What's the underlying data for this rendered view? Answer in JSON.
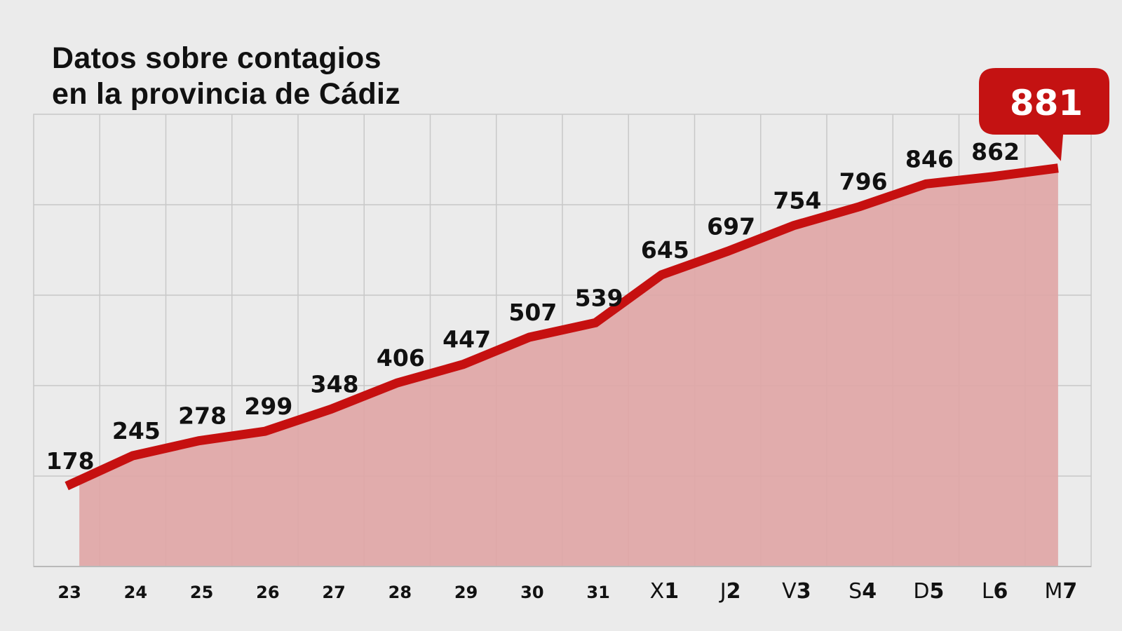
{
  "chart_data": {
    "type": "area",
    "title": "Datos sobre contagios en la provincia de Cádiz",
    "title_lines": [
      "Datos sobre contagios",
      "en la provincia de Cádiz"
    ],
    "categories": [
      {
        "prefix": "",
        "day": "23"
      },
      {
        "prefix": "",
        "day": "24"
      },
      {
        "prefix": "",
        "day": "25"
      },
      {
        "prefix": "",
        "day": "26"
      },
      {
        "prefix": "",
        "day": "27"
      },
      {
        "prefix": "",
        "day": "28"
      },
      {
        "prefix": "",
        "day": "29"
      },
      {
        "prefix": "",
        "day": "30"
      },
      {
        "prefix": "",
        "day": "31"
      },
      {
        "prefix": "X",
        "day": "1"
      },
      {
        "prefix": "J",
        "day": "2"
      },
      {
        "prefix": "V",
        "day": "3"
      },
      {
        "prefix": "S",
        "day": "4"
      },
      {
        "prefix": "D",
        "day": "5"
      },
      {
        "prefix": "L",
        "day": "6"
      },
      {
        "prefix": "M",
        "day": "7"
      }
    ],
    "values": [
      178,
      245,
      278,
      299,
      348,
      406,
      447,
      507,
      539,
      645,
      697,
      754,
      796,
      846,
      862,
      881
    ],
    "highlight": {
      "index": 15,
      "label": "881"
    },
    "ylim": [
      0,
      1000
    ],
    "ygrid_step": 200,
    "grid": true,
    "xlabel": "",
    "ylabel": "",
    "colors": {
      "line": "#c61010",
      "fill": "#e0a6a6",
      "bubble": "#c41212",
      "grid": "#c8c8c8",
      "background": "#ebebeb"
    }
  }
}
